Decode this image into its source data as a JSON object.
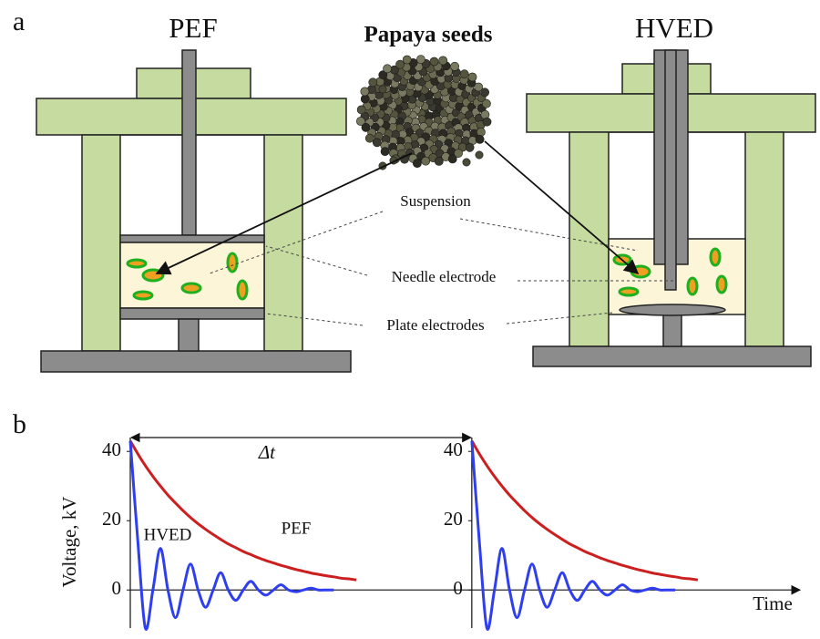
{
  "panel_a": {
    "label": "a",
    "left_title": "PEF",
    "center_title": "Papaya seeds",
    "right_title": "HVED",
    "labels": [
      "Suspension",
      "Needle electrode",
      "Plate electrodes"
    ]
  },
  "chart_data": {
    "type": "line",
    "panel_label": "b",
    "ylabel": "Voltage, kV",
    "xlabel": "Time",
    "annotations": [
      "Δt"
    ],
    "xlim": [
      0,
      200
    ],
    "ylim": [
      -11,
      44
    ],
    "yticks": [
      0,
      20,
      40
    ],
    "grid": false,
    "x": [
      0,
      2.25,
      4.5,
      6.75,
      9,
      11.25,
      13.5,
      15.75,
      18,
      20.25,
      22.5,
      24.75,
      27,
      29.25,
      31.5,
      33.75,
      36,
      38.25,
      40.5,
      42.75,
      45,
      47.25,
      49.5,
      51.75,
      54,
      56.25,
      58.5,
      60.75,
      63,
      65.25,
      67.5,
      85,
      102,
      104.25,
      106.5,
      108.75,
      111,
      113.25,
      115.5,
      117.75,
      120,
      122.25,
      124.5,
      126.75,
      129,
      131.25,
      133.5,
      135.75,
      138,
      140.25,
      142.5,
      144.75,
      147,
      149.25,
      151.5,
      153.75,
      156,
      158.25,
      160.5,
      162.75,
      165,
      167.25,
      169.5
    ],
    "series": [
      {
        "name": "PEF",
        "color": "#cc1f1f",
        "values": [
          43.0,
          39.3,
          35.9,
          32.8,
          30.0,
          27.4,
          25.1,
          22.9,
          20.9,
          19.1,
          17.5,
          16.0,
          14.6,
          13.3,
          12.2,
          11.1,
          10.2,
          9.3,
          8.5,
          7.8,
          7.1,
          6.5,
          5.9,
          5.4,
          4.9,
          4.5,
          4.1,
          3.8,
          3.4,
          3.2,
          2.9,
          null,
          43.0,
          39.3,
          35.9,
          32.8,
          30.0,
          27.4,
          25.1,
          22.9,
          20.9,
          19.1,
          17.5,
          16.0,
          14.6,
          13.3,
          12.2,
          11.1,
          10.2,
          9.3,
          8.5,
          7.8,
          7.1,
          6.5,
          5.9,
          5.4,
          4.9,
          4.5,
          4.1,
          3.8,
          3.4,
          3.2,
          2.9
        ]
      },
      {
        "name": "HVED",
        "color": "#2f3ff0",
        "values": [
          43,
          14,
          -11,
          0,
          12,
          0,
          -8,
          0,
          7.5,
          0,
          -5,
          0,
          5,
          0,
          -3,
          0,
          2.5,
          0,
          -1.5,
          0,
          1.5,
          0,
          -0.5,
          0,
          0.5,
          0,
          0,
          0,
          null,
          null,
          null,
          null,
          43,
          14,
          -11,
          0,
          12,
          0,
          -8,
          0,
          7.5,
          0,
          -5,
          0,
          5,
          0,
          -3,
          0,
          2.5,
          0,
          -1.5,
          0,
          1.5,
          0,
          -0.5,
          0,
          0.5,
          0,
          0,
          0,
          null,
          null,
          null
        ]
      }
    ]
  }
}
